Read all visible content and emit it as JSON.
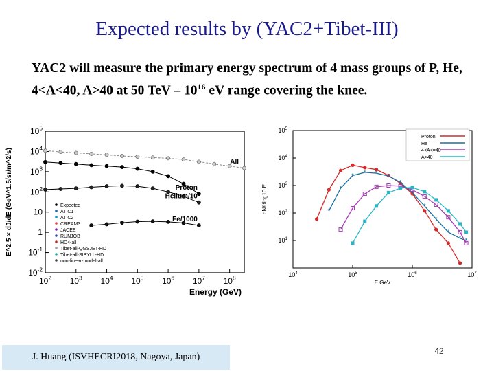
{
  "slide": {
    "title": "Expected results by (YAC2+Tibet-III)",
    "body_before_sup": "YAC2 will measure the primary energy spectrum of 4 mass groups of P, He, 4<A<40, A>40 at 50 TeV – 10",
    "body_sup": "16",
    "body_after_sup": " eV range covering the knee.",
    "footer": "J. Huang  (ISVHECRI2018,  Nagoya,  Japan)",
    "page_number": "42"
  },
  "chart_data": [
    {
      "type": "scatter",
      "xlabel": "Energy (GeV)",
      "ylabel": "E^2.5 × dJ/dE (GeV^1.5/sr/m^2/s)",
      "x_scale": "log",
      "y_scale": "log",
      "xlim": [
        100,
        300000000
      ],
      "ylim": [
        0.01,
        100000
      ],
      "x_ticks": [
        "10^2",
        "10^3",
        "10^4",
        "10^5",
        "10^6",
        "10^7",
        "10^8"
      ],
      "y_ticks": [
        "10^-2",
        "10^-1",
        "1",
        "10",
        "10^2",
        "10^3",
        "10^4",
        "10^5"
      ],
      "annotations": [
        "All",
        "Proton",
        "Helium/10",
        "Fe/1000"
      ],
      "legend": [
        "Expected",
        "ATIC1",
        "ATIC2",
        "CREAM3",
        "JACEE",
        "RUNJOB",
        "HD4-all",
        "Tibet-all-QGSJET-HD",
        "Tibet-all-SIBYLL-HD",
        "non-linear-model-all"
      ],
      "legend_position": "bottom-left",
      "series": [
        {
          "name": "All",
          "color": "#888888",
          "x": [
            100,
            316,
            1000,
            3160,
            10000,
            31600,
            100000,
            316000,
            1000000,
            3160000,
            10000000,
            31600000,
            100000000,
            300000000
          ],
          "y": [
            11000,
            9500,
            8500,
            7600,
            6800,
            6000,
            5500,
            5000,
            4600,
            4000,
            3100,
            2400,
            1900,
            1500
          ]
        },
        {
          "name": "Proton",
          "color": "#000000",
          "x": [
            100,
            316,
            1000,
            3160,
            10000,
            31600,
            100000,
            316000,
            1000000,
            3160000,
            10000000
          ],
          "y": [
            3000,
            2700,
            2400,
            2100,
            1900,
            1700,
            1400,
            1000,
            600,
            250,
            80
          ]
        },
        {
          "name": "Helium/10",
          "color": "#000000",
          "x": [
            100,
            316,
            1000,
            3160,
            10000,
            31600,
            100000,
            316000,
            1000000,
            3160000,
            10000000
          ],
          "y": [
            130,
            140,
            150,
            170,
            190,
            200,
            190,
            150,
            100,
            60,
            30
          ]
        },
        {
          "name": "Fe/1000",
          "color": "#000000",
          "x": [
            3160,
            10000,
            31600,
            100000,
            316000,
            1000000,
            3160000,
            10000000
          ],
          "y": [
            2.2,
            2.5,
            3,
            3.4,
            3.5,
            3.3,
            2.9,
            2.2
          ]
        }
      ]
    },
    {
      "type": "line",
      "xlabel": "E GeV",
      "ylabel": "dN/dlog10 E",
      "x_scale": "log",
      "y_scale": "log",
      "xlim": [
        10000,
        10000000
      ],
      "ylim": [
        1,
        100000
      ],
      "x_ticks": [
        "10^4",
        "10^5",
        "10^6",
        "10^7"
      ],
      "y_ticks": [
        "10^1",
        "10^2",
        "10^3",
        "10^4",
        "10^5"
      ],
      "legend_position": "top-right",
      "series": [
        {
          "name": "Proton",
          "color": "#d42a2a",
          "x": [
            25000,
            40000,
            63000,
            100000,
            160000,
            250000,
            400000,
            630000,
            1000000,
            1600000,
            2500000,
            4000000,
            6300000
          ],
          "y": [
            60,
            700,
            3500,
            5500,
            4500,
            3800,
            2300,
            1200,
            500,
            120,
            25,
            8,
            1.5
          ]
        },
        {
          "name": "He",
          "color": "#1a6e9e",
          "x": [
            40000,
            63000,
            100000,
            160000,
            250000,
            400000,
            630000,
            1000000,
            1600000,
            2500000,
            4000000,
            6300000,
            8000000
          ],
          "y": [
            120,
            800,
            2300,
            3000,
            2800,
            2200,
            1300,
            550,
            180,
            60,
            20,
            12,
            10
          ]
        },
        {
          "name": "4<A<=40",
          "color": "#a23cb0",
          "x": [
            63000,
            100000,
            160000,
            250000,
            400000,
            630000,
            1000000,
            1600000,
            2500000,
            4000000,
            6300000,
            8000000
          ],
          "y": [
            25,
            150,
            500,
            900,
            1000,
            950,
            700,
            400,
            200,
            70,
            20,
            8
          ]
        },
        {
          "name": "A>40",
          "color": "#2ab5c4",
          "x": [
            100000,
            160000,
            250000,
            400000,
            630000,
            1000000,
            1600000,
            2500000,
            4000000,
            6300000,
            8000000
          ],
          "y": [
            8,
            50,
            180,
            550,
            800,
            850,
            600,
            300,
            120,
            40,
            20
          ]
        }
      ]
    }
  ]
}
